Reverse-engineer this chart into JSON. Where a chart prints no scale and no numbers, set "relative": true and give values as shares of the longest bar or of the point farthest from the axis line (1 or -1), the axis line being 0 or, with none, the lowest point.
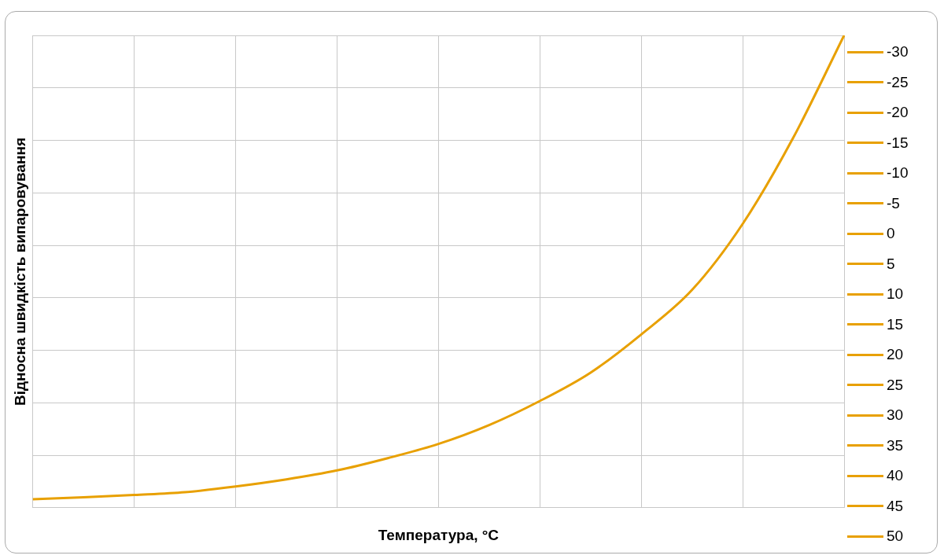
{
  "chart_data": {
    "type": "line",
    "relative": true,
    "xlabel": "Температура, °C",
    "ylabel": "Відносна швидкість випаровування",
    "categories": [
      null,
      null,
      null,
      null,
      null,
      null,
      null,
      null,
      null,
      null,
      null,
      null,
      null,
      null,
      null,
      null,
      null
    ],
    "series": [
      {
        "color": "#e8a000",
        "values": [
          0.018,
          0.022,
          0.027,
          0.033,
          0.045,
          0.06,
          0.079,
          0.105,
          0.135,
          0.175,
          0.226,
          0.286,
          0.367,
          0.461,
          0.601,
          0.784,
          1
        ]
      }
    ],
    "annotations": [
      "-30",
      "-25",
      "-20",
      "-15",
      "-10",
      "-5",
      "0",
      "5",
      "10",
      "15",
      "20",
      "25",
      "30",
      "35",
      "40",
      "45",
      "50"
    ],
    "grid": true,
    "marker": "none",
    "line_style": "solid"
  }
}
